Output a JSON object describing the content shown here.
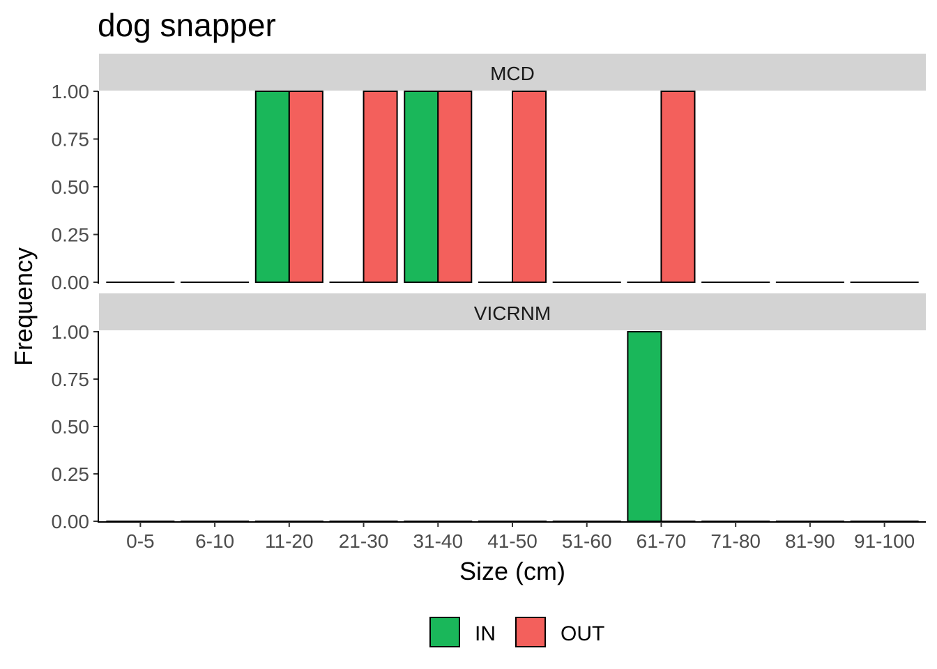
{
  "chart_data": {
    "type": "bar",
    "title": "dog snapper",
    "xlabel": "Size (cm)",
    "ylabel": "Frequency",
    "categories": [
      "0-5",
      "6-10",
      "11-20",
      "21-30",
      "31-40",
      "41-50",
      "51-60",
      "61-70",
      "71-80",
      "81-90",
      "91-100"
    ],
    "ylim": [
      0,
      1.2
    ],
    "yticks": [
      "0.00",
      "0.25",
      "0.50",
      "0.75",
      "1.00"
    ],
    "grid": false,
    "legend_position": "bottom",
    "series_colors": {
      "IN": "#1ab75a",
      "OUT": "#f3605c"
    },
    "legend": [
      "IN",
      "OUT"
    ],
    "facets": [
      {
        "name": "MCD",
        "series": [
          {
            "name": "IN",
            "values": [
              0,
              0,
              1,
              0,
              1,
              0,
              0,
              0,
              0,
              0,
              0
            ]
          },
          {
            "name": "OUT",
            "values": [
              0,
              0,
              1,
              1,
              1,
              1,
              0,
              1,
              0,
              0,
              0
            ]
          }
        ]
      },
      {
        "name": "VICRNM",
        "series": [
          {
            "name": "IN",
            "values": [
              0,
              0,
              0,
              0,
              0,
              0,
              0,
              1,
              0,
              0,
              0
            ]
          },
          {
            "name": "OUT",
            "values": [
              0,
              0,
              0,
              0,
              0,
              0,
              0,
              0,
              0,
              0,
              0
            ]
          }
        ]
      }
    ]
  }
}
